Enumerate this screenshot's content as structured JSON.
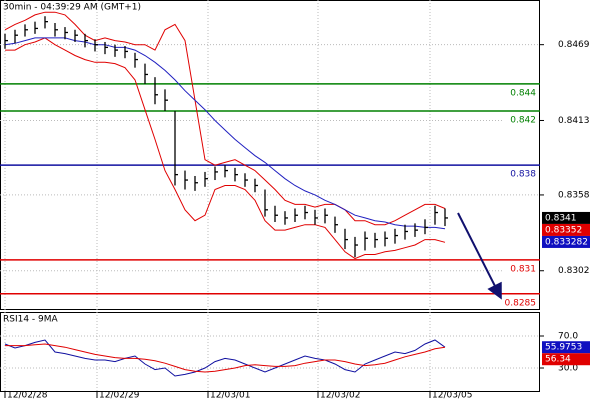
{
  "chart_data": [
    {
      "type": "ohlc",
      "title": "30min - 04:39:29 AM (GMT+1)",
      "x": [
        0,
        1,
        2,
        3,
        4,
        5,
        6,
        7,
        8,
        9,
        10,
        11,
        12,
        13,
        14,
        15,
        16,
        17,
        18,
        19,
        20,
        21,
        22,
        23,
        24,
        25,
        26,
        27,
        28,
        29,
        30,
        31,
        32,
        33,
        34,
        35,
        36,
        37,
        38,
        39,
        40,
        41,
        42,
        43,
        44
      ],
      "xlim": [
        -0.5,
        53.5
      ],
      "xticks": [
        {
          "value": 0,
          "label": "12/02/28"
        },
        {
          "value": 9.2,
          "label": "12/02/29"
        },
        {
          "value": 20.3,
          "label": "12/03/01"
        },
        {
          "value": 31.3,
          "label": "12/03/02"
        },
        {
          "value": 42.5,
          "label": "12/03/05"
        }
      ],
      "ylim": [
        0.8273,
        0.8502
      ],
      "yticks": [
        0.8302,
        0.8358,
        0.8413,
        0.8469
      ],
      "grid": true,
      "color": "#000000",
      "high": [
        0.8477,
        0.848,
        0.8484,
        0.8486,
        0.849,
        0.8485,
        0.8482,
        0.848,
        0.8477,
        0.8473,
        0.8471,
        0.8469,
        0.8468,
        0.8463,
        0.8455,
        0.8445,
        0.8436,
        0.842,
        0.8376,
        0.8372,
        0.8375,
        0.8379,
        0.838,
        0.8378,
        0.8374,
        0.837,
        0.8362,
        0.835,
        0.8346,
        0.8348,
        0.835,
        0.8347,
        0.8348,
        0.8342,
        0.8333,
        0.8327,
        0.8331,
        0.833,
        0.8331,
        0.8333,
        0.8336,
        0.8337,
        0.834,
        0.835,
        0.8348
      ],
      "low": [
        0.8466,
        0.847,
        0.8475,
        0.8477,
        0.8481,
        0.8475,
        0.8473,
        0.8471,
        0.8467,
        0.8464,
        0.8462,
        0.846,
        0.8459,
        0.8452,
        0.844,
        0.8425,
        0.842,
        0.8365,
        0.8362,
        0.8361,
        0.8364,
        0.8369,
        0.8371,
        0.8368,
        0.8364,
        0.836,
        0.8342,
        0.8338,
        0.8336,
        0.8338,
        0.834,
        0.8336,
        0.8337,
        0.833,
        0.8318,
        0.8312,
        0.8317,
        0.8319,
        0.832,
        0.8322,
        0.8325,
        0.8327,
        0.8329,
        0.8336,
        0.8335
      ],
      "close": [
        0.8472,
        0.8476,
        0.848,
        0.8481,
        0.8486,
        0.848,
        0.8478,
        0.8476,
        0.8472,
        0.8469,
        0.8467,
        0.8465,
        0.8464,
        0.8458,
        0.8447,
        0.8432,
        0.8428,
        0.8373,
        0.8369,
        0.8367,
        0.837,
        0.8375,
        0.8376,
        0.8373,
        0.8369,
        0.8365,
        0.8347,
        0.8343,
        0.8341,
        0.8343,
        0.8345,
        0.8341,
        0.8343,
        0.8336,
        0.8325,
        0.8321,
        0.8326,
        0.8325,
        0.8326,
        0.8328,
        0.8331,
        0.8332,
        0.8334,
        0.8345,
        0.8341
      ],
      "series": [
        {
          "color": "#e00000",
          "values": [
            0.848,
            0.8484,
            0.8487,
            0.8491,
            0.8493,
            0.8493,
            0.8491,
            0.8484,
            0.8476,
            0.8472,
            0.8474,
            0.8472,
            0.8471,
            0.8469,
            0.8469,
            0.8465,
            0.848,
            0.8484,
            0.8472,
            0.8428,
            0.8384,
            0.838,
            0.8382,
            0.8384,
            0.838,
            0.8376,
            0.8369,
            0.8362,
            0.8354,
            0.8351,
            0.8351,
            0.8349,
            0.8351,
            0.8351,
            0.8347,
            0.8339,
            0.8339,
            0.8336,
            0.8336,
            0.8339,
            0.8343,
            0.8347,
            0.8351,
            0.8351,
            0.8348
          ]
        },
        {
          "color": "#e00000",
          "values": [
            0.8465,
            0.8465,
            0.8469,
            0.8471,
            0.8474,
            0.8469,
            0.8465,
            0.8461,
            0.8458,
            0.8456,
            0.8456,
            0.8455,
            0.8452,
            0.8443,
            0.8421,
            0.8399,
            0.8376,
            0.8362,
            0.8347,
            0.8339,
            0.8343,
            0.8362,
            0.8365,
            0.8365,
            0.8362,
            0.8354,
            0.8339,
            0.8332,
            0.8332,
            0.8334,
            0.8336,
            0.8336,
            0.8334,
            0.8325,
            0.8316,
            0.8311,
            0.8314,
            0.8314,
            0.8316,
            0.8317,
            0.8319,
            0.8321,
            0.8325,
            0.8325,
            0.8323
          ]
        },
        {
          "color": "#2020c0",
          "values": [
            0.8469,
            0.847,
            0.8472,
            0.8474,
            0.8474,
            0.8474,
            0.8474,
            0.8472,
            0.8471,
            0.8469,
            0.8469,
            0.8467,
            0.8467,
            0.8465,
            0.8461,
            0.8456,
            0.845,
            0.8443,
            0.8435,
            0.8428,
            0.8421,
            0.8413,
            0.8406,
            0.8399,
            0.8393,
            0.8387,
            0.8382,
            0.8376,
            0.837,
            0.8365,
            0.8361,
            0.8358,
            0.8354,
            0.8351,
            0.8347,
            0.8343,
            0.8341,
            0.8339,
            0.8338,
            0.8336,
            0.8335,
            0.8335,
            0.8334,
            0.8334,
            0.8333
          ]
        }
      ],
      "levels": [
        {
          "value": 0.844,
          "color": "#008000"
        },
        {
          "value": 0.842,
          "color": "#008000"
        },
        {
          "value": 0.838,
          "color": "#1010a0"
        },
        {
          "value": 0.831,
          "color": "#e00000"
        },
        {
          "value": 0.8285,
          "color": "#e00000"
        }
      ],
      "tags": [
        {
          "value": 0.8341,
          "color": "#000000"
        },
        {
          "value": 0.83352,
          "color": "#e00000"
        },
        {
          "value": 0.833282,
          "color": "#1010c0"
        }
      ]
    },
    {
      "type": "line",
      "title": "RSI14 - 9MA",
      "ylim": [
        0,
        100
      ],
      "yticks": [
        {
          "value": 70,
          "label": "70.0"
        },
        {
          "value": 30,
          "label": "30.0"
        }
      ],
      "grid": true,
      "series": [
        {
          "color": "#1010a0",
          "values": [
            60,
            55,
            58,
            62,
            65,
            50,
            48,
            45,
            42,
            40,
            40,
            38,
            42,
            45,
            35,
            28,
            30,
            20,
            22,
            25,
            30,
            38,
            42,
            40,
            35,
            30,
            25,
            30,
            35,
            40,
            45,
            42,
            40,
            35,
            28,
            25,
            35,
            40,
            45,
            50,
            48,
            52,
            60,
            65,
            56
          ]
        },
        {
          "color": "#e00000",
          "values": [
            58,
            58,
            58,
            59,
            60,
            58,
            56,
            53,
            50,
            47,
            45,
            43,
            42,
            42,
            41,
            39,
            36,
            32,
            28,
            26,
            25,
            26,
            28,
            30,
            33,
            34,
            33,
            32,
            32,
            33,
            36,
            38,
            40,
            40,
            38,
            35,
            33,
            34,
            36,
            40,
            44,
            47,
            50,
            54,
            56
          ]
        }
      ],
      "tags": [
        {
          "value": 55.9753,
          "color": "#1010c0"
        },
        {
          "value": 56.34,
          "color": "#e00000"
        }
      ]
    }
  ]
}
